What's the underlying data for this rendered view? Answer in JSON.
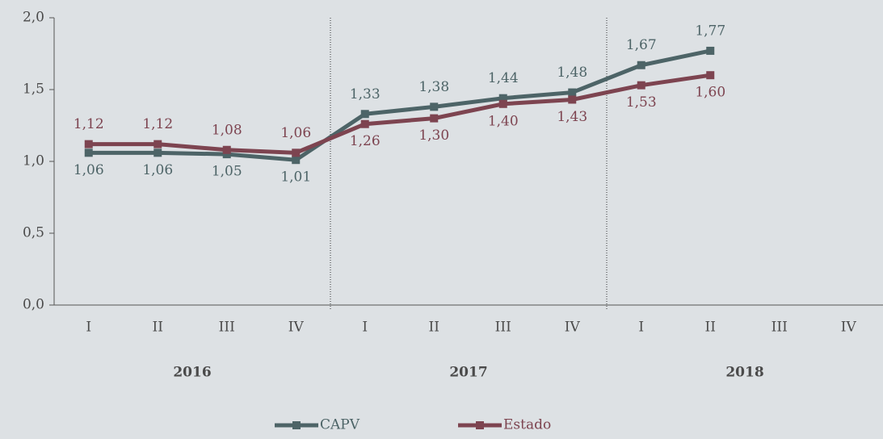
{
  "chart_data": {
    "type": "line",
    "categories": [
      "I",
      "II",
      "III",
      "IV",
      "I",
      "II",
      "III",
      "IV",
      "I",
      "II",
      "III",
      "IV"
    ],
    "years": [
      "2016",
      "2017",
      "2018"
    ],
    "series": [
      {
        "name": "CAPV",
        "color": "#4d6467",
        "values": [
          1.06,
          1.06,
          1.05,
          1.01,
          1.33,
          1.38,
          1.44,
          1.48,
          1.67,
          1.77,
          null,
          null
        ],
        "value_labels": [
          "1,06",
          "1,06",
          "1,05",
          "1,01",
          "1,33",
          "1,38",
          "1,44",
          "1,48",
          "1,67",
          "1,77",
          null,
          null
        ]
      },
      {
        "name": "Estado",
        "color": "#7d4450",
        "values": [
          1.12,
          1.12,
          1.08,
          1.06,
          1.26,
          1.3,
          1.4,
          1.43,
          1.53,
          1.6,
          null,
          null
        ],
        "value_labels": [
          "1,12",
          "1,12",
          "1,08",
          "1,06",
          "1,26",
          "1,30",
          "1,40",
          "1,43",
          "1,53",
          "1,60",
          null,
          null
        ]
      }
    ],
    "ylim": [
      0,
      2
    ],
    "yticks": [
      {
        "value": 0,
        "label": "0,0"
      },
      {
        "value": 0.5,
        "label": "0,5"
      },
      {
        "value": 1,
        "label": "1,0"
      },
      {
        "value": 1.5,
        "label": "1,5"
      },
      {
        "value": 2,
        "label": "2,0"
      }
    ],
    "legend": "bottom"
  }
}
